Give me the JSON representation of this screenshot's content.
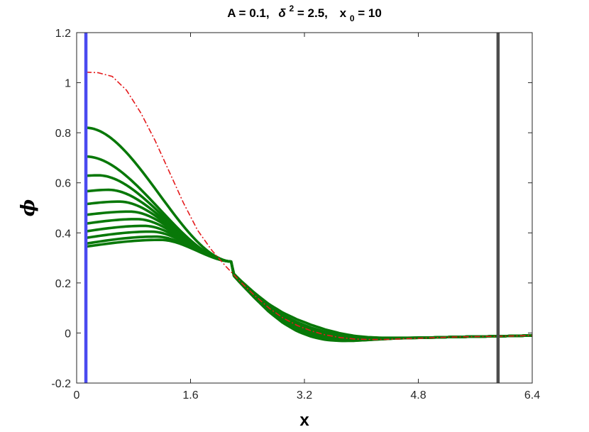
{
  "chart_data": {
    "type": "line",
    "title_parts": {
      "a": "A = 0.1,",
      "delta": "δ",
      "delta_exp": "2",
      "delta_rest": " = 2.5,",
      "x0": "x",
      "x0_sub": "0",
      "x0_rest": " = 10"
    },
    "xlabel": "x",
    "ylabel": "ϕ",
    "xlim": [
      0,
      6.4
    ],
    "ylim": [
      -0.2,
      1.2
    ],
    "x_ticks": [
      0,
      1.6,
      3.2,
      4.8,
      6.4
    ],
    "x_tick_labels": [
      "0",
      "1.6",
      "3.2",
      "4.8",
      "6.4"
    ],
    "y_ticks": [
      -0.2,
      0,
      0.2,
      0.4,
      0.6,
      0.8,
      1.0,
      1.2
    ],
    "y_tick_labels": [
      "-0.2",
      "0",
      "0.2",
      "0.4",
      "0.6",
      "0.8",
      "1",
      "1.2"
    ],
    "vertical_lines": [
      {
        "x": 0.13,
        "color": "#4a4af0"
      },
      {
        "x": 5.92,
        "color": "#4d4d4d"
      }
    ],
    "reference_curve": {
      "color": "#e41a1c",
      "style": "dash-dot",
      "x": [
        0.13,
        0.3,
        0.5,
        0.7,
        0.9,
        1.1,
        1.3,
        1.5,
        1.7,
        1.9,
        2.1,
        2.3,
        2.5,
        2.7,
        2.9,
        3.1,
        3.3,
        3.5,
        3.7,
        3.9,
        4.1,
        4.3,
        4.5,
        4.7,
        4.9,
        5.1,
        5.3,
        5.5,
        5.7,
        5.92,
        6.1,
        6.4
      ],
      "y": [
        1.042,
        1.04,
        1.025,
        0.97,
        0.88,
        0.77,
        0.645,
        0.52,
        0.41,
        0.33,
        0.265,
        0.205,
        0.15,
        0.1,
        0.06,
        0.03,
        0.008,
        -0.008,
        -0.018,
        -0.024,
        -0.026,
        -0.026,
        -0.024,
        -0.022,
        -0.02,
        -0.018,
        -0.016,
        -0.015,
        -0.014,
        -0.013,
        -0.012,
        -0.01
      ]
    },
    "family_color": "#087808",
    "series": [
      {
        "y0": 0.82,
        "ymax": 0.82,
        "xmax": 0.13
      },
      {
        "y0": 0.705,
        "ymax": 0.705,
        "xmax": 0.13
      },
      {
        "y0": 0.628,
        "ymax": 0.63,
        "xmax": 0.3
      },
      {
        "y0": 0.566,
        "ymax": 0.572,
        "xmax": 0.45
      },
      {
        "y0": 0.515,
        "ymax": 0.525,
        "xmax": 0.6
      },
      {
        "y0": 0.472,
        "ymax": 0.485,
        "xmax": 0.75
      },
      {
        "y0": 0.437,
        "ymax": 0.455,
        "xmax": 0.85
      },
      {
        "y0": 0.406,
        "ymax": 0.428,
        "xmax": 0.95
      },
      {
        "y0": 0.38,
        "ymax": 0.405,
        "xmax": 1.05
      },
      {
        "y0": 0.357,
        "ymax": 0.385,
        "xmax": 1.12
      },
      {
        "y0": 0.345,
        "ymax": 0.372,
        "xmax": 1.18
      }
    ],
    "grid": false
  }
}
